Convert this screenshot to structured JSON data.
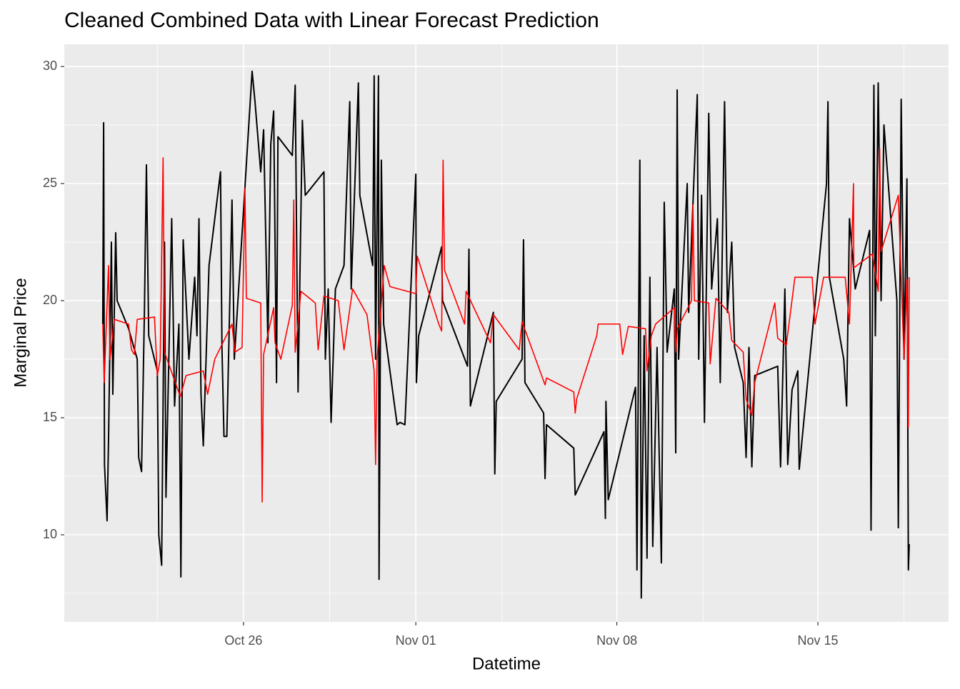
{
  "chart_data": {
    "type": "line",
    "title": "Cleaned Combined Data with Linear Forecast Prediction",
    "x_label": "Datetime",
    "y_label": "Marginal Price",
    "xlim": [
      19.76,
      50.55
    ],
    "ylim": [
      6.28,
      30.95
    ],
    "xticks": [
      {
        "value": 26,
        "label": "Oct 26"
      },
      {
        "value": 32,
        "label": "Nov 01"
      },
      {
        "value": 39,
        "label": "Nov 08"
      },
      {
        "value": 46,
        "label": "Nov 15"
      }
    ],
    "yticks": [
      10,
      15,
      20,
      25,
      30
    ],
    "grid": true,
    "series": [
      {
        "color": "#000000",
        "x": [
          21.1,
          21.13,
          21.16,
          21.25,
          21.3,
          21.4,
          21.45,
          21.55,
          21.6,
          22.0,
          22.3,
          22.35,
          22.45,
          22.55,
          22.62,
          22.7,
          23.0,
          23.05,
          23.15,
          23.25,
          23.3,
          23.5,
          23.6,
          23.75,
          23.82,
          23.9,
          24.1,
          24.3,
          24.38,
          24.45,
          24.52,
          24.6,
          24.8,
          25.2,
          25.25,
          25.32,
          25.42,
          25.6,
          25.68,
          26.3,
          26.4,
          26.6,
          26.7,
          26.85,
          26.95,
          27.05,
          27.15,
          27.2,
          27.7,
          27.8,
          27.9,
          28.05,
          28.15,
          28.8,
          28.85,
          28.95,
          29.05,
          29.2,
          29.5,
          29.7,
          29.75,
          30.0,
          30.05,
          30.5,
          30.55,
          30.6,
          30.7,
          30.72,
          30.8,
          30.88,
          31.35,
          31.45,
          31.62,
          32.0,
          32.02,
          32.1,
          32.9,
          32.93,
          33.8,
          33.85,
          33.9,
          34.7,
          34.75,
          34.8,
          35.7,
          35.75,
          35.8,
          36.45,
          36.5,
          36.55,
          37.5,
          37.55,
          38.55,
          38.6,
          38.62,
          38.7,
          39.65,
          39.7,
          39.8,
          39.85,
          39.95,
          40.05,
          40.15,
          40.25,
          40.4,
          40.55,
          40.65,
          40.75,
          41.0,
          41.05,
          41.1,
          41.15,
          41.45,
          41.5,
          41.8,
          41.85,
          41.95,
          42.05,
          42.2,
          42.3,
          42.5,
          42.6,
          42.75,
          42.85,
          43.0,
          43.1,
          43.4,
          43.5,
          43.6,
          43.7,
          43.8,
          44.6,
          44.7,
          44.85,
          44.95,
          45.1,
          45.3,
          45.35,
          45.6,
          46.3,
          46.35,
          46.4,
          46.9,
          47.0,
          47.1,
          47.3,
          47.8,
          47.85,
          47.95,
          48.0,
          48.1,
          48.2,
          48.3,
          48.75,
          48.8,
          48.9,
          49.0,
          49.1,
          49.15,
          49.18
        ],
        "values": [
          19,
          27.6,
          13,
          10.6,
          14,
          22.5,
          16,
          22.9,
          20,
          18.8,
          17.5,
          13.3,
          12.7,
          19.5,
          25.8,
          18.5,
          17,
          10,
          8.7,
          22.5,
          11.6,
          23.5,
          15.5,
          19,
          8.2,
          22.6,
          17.5,
          21,
          18.5,
          23.5,
          16,
          13.8,
          21.5,
          25.5,
          18,
          14.2,
          14.2,
          24.3,
          17.5,
          29.8,
          28.5,
          25.5,
          27.3,
          18.2,
          26.7,
          28.1,
          16.5,
          27,
          26.2,
          29.2,
          16.1,
          27.7,
          24.5,
          25.5,
          17.5,
          20.5,
          14.8,
          20.5,
          21.5,
          28.5,
          20.5,
          29.3,
          24.5,
          21.5,
          29.6,
          17.5,
          29.6,
          8.1,
          26,
          19,
          14.7,
          14.8,
          14.7,
          25.4,
          16.5,
          18.5,
          22.3,
          20,
          17.2,
          22.2,
          15.5,
          19.5,
          12.6,
          15.7,
          17.5,
          22.6,
          16.5,
          15.2,
          12.4,
          14.7,
          13.7,
          11.7,
          14.4,
          10.7,
          15.7,
          11.5,
          16.3,
          8.5,
          26,
          7.3,
          18.5,
          9,
          21,
          9.5,
          18,
          8.8,
          24.2,
          17.8,
          20.5,
          13.5,
          29,
          17.5,
          25,
          19.5,
          28.8,
          17.5,
          24.5,
          14.8,
          28,
          20.5,
          23.5,
          16.5,
          28.5,
          19.5,
          22.5,
          18,
          16.5,
          13.3,
          18,
          12.9,
          16.8,
          17.2,
          12.9,
          20.5,
          13,
          16.2,
          17,
          12.8,
          16,
          25,
          28.5,
          21,
          17.5,
          15.5,
          23.5,
          20.5,
          23,
          10.2,
          29.2,
          18.5,
          29.3,
          20,
          27.5,
          20,
          10.3,
          28.6,
          17.5,
          25.2,
          8.5,
          9.6
        ]
      },
      {
        "color": "#ff0000",
        "x": [
          21.1,
          21.15,
          21.3,
          21.35,
          21.5,
          22.0,
          22.1,
          22.2,
          22.3,
          22.9,
          23.0,
          23.1,
          23.2,
          23.25,
          23.8,
          24.0,
          24.6,
          24.75,
          25.0,
          25.6,
          25.7,
          25.95,
          26.05,
          26.1,
          26.6,
          26.65,
          26.7,
          27.05,
          27.1,
          27.3,
          27.7,
          27.75,
          27.8,
          28.0,
          28.5,
          28.6,
          28.8,
          29.3,
          29.5,
          29.8,
          30.3,
          30.55,
          30.6,
          30.65,
          30.9,
          31.1,
          32.0,
          32.05,
          32.8,
          32.9,
          32.95,
          33.0,
          33.7,
          33.75,
          34.6,
          34.7,
          35.6,
          35.7,
          36.5,
          36.55,
          37.5,
          37.55,
          37.6,
          38.3,
          38.35,
          39.1,
          39.2,
          39.4,
          40.0,
          40.05,
          40.2,
          40.35,
          41.0,
          41.05,
          41.1,
          41.6,
          41.65,
          41.7,
          42.2,
          42.25,
          42.45,
          42.9,
          43.0,
          43.4,
          43.5,
          43.7,
          43.8,
          44.5,
          44.6,
          44.9,
          45.2,
          45.8,
          45.9,
          46.2,
          46.95,
          47.1,
          47.24,
          47.25,
          47.9,
          48.1,
          48.15,
          48.2,
          48.8,
          49.0,
          49.1,
          49.15,
          49.18
        ],
        "values": [
          19,
          16.5,
          21.5,
          17.5,
          19.2,
          19,
          17.9,
          17.7,
          19.2,
          19.3,
          16.8,
          17.5,
          26.1,
          17.8,
          15.9,
          16.8,
          17,
          16,
          17.5,
          19,
          17.8,
          18,
          24.8,
          20.1,
          19.9,
          11.4,
          17.7,
          19.7,
          18.2,
          17.5,
          19.8,
          24.3,
          17.8,
          20.4,
          19.9,
          17.9,
          20.2,
          20,
          17.9,
          20.5,
          19.4,
          17,
          13,
          17.5,
          21.5,
          20.6,
          20.3,
          21.9,
          19,
          18.7,
          26,
          21.3,
          19,
          20.4,
          18.2,
          19.4,
          17.9,
          19.1,
          16.4,
          16.7,
          16.1,
          15.2,
          15.8,
          18.5,
          19,
          19,
          17.7,
          18.9,
          18.8,
          17,
          18.5,
          19,
          19.7,
          17.8,
          18.8,
          20,
          24.1,
          20,
          19.9,
          17.3,
          20.1,
          19.5,
          18.3,
          17.8,
          15.8,
          15.1,
          16.5,
          19.9,
          18.4,
          18.1,
          21,
          21,
          19,
          21,
          21,
          19,
          25,
          21.4,
          22,
          20.4,
          26.5,
          22.1,
          24.5,
          17.5,
          20.9,
          14.6,
          21
        ]
      }
    ]
  }
}
